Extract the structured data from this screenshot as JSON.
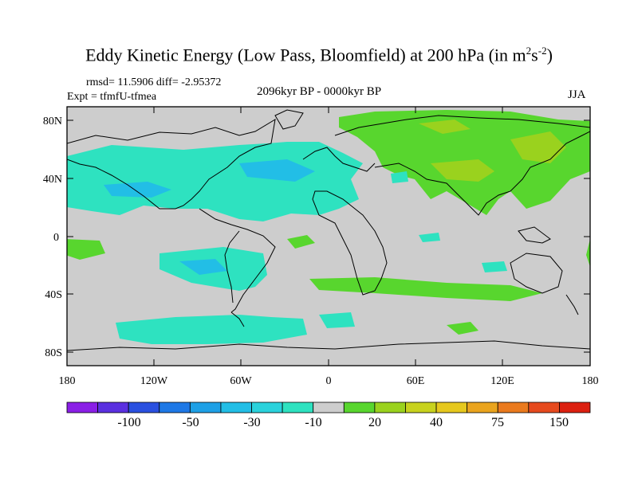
{
  "title": {
    "main": "Eddy Kinetic Energy (Low Pass, Bloomfield) at 200 hPa (in m",
    "sup1": "2",
    "mid": "s",
    "sup2": "-2",
    "end": ")"
  },
  "stats": {
    "rmsd_line": "rmsd= 11.5906 diff= -2.95372",
    "expt_line": "Expt = tfmfU-tfmea"
  },
  "period": "2096kyr BP - 0000kyr BP",
  "season": "JJA",
  "axes": {
    "y_ticks": [
      "80N",
      "40N",
      "0",
      "40S",
      "80S"
    ],
    "x_ticks": [
      "180",
      "120W",
      "60W",
      "0",
      "60E",
      "120E",
      "180"
    ]
  },
  "colorbar": {
    "colors": [
      "#8a1fe6",
      "#5a30e0",
      "#2a50e0",
      "#1e78e6",
      "#1ea0e6",
      "#22bee6",
      "#2ad2dc",
      "#2ee2c0",
      "#cdcdcd",
      "#58d62e",
      "#9ad21e",
      "#c8d21e",
      "#e6c81e",
      "#eaa41e",
      "#ea7a1e",
      "#e64a1e",
      "#dc2010"
    ],
    "labels": [
      "-100",
      "-50",
      "-30",
      "-10",
      "20",
      "40",
      "75",
      "150"
    ]
  },
  "colors": {
    "neutral": "#cdcdcd",
    "cyan": "#2ee2c0",
    "cyan_deep": "#22bee6",
    "green": "#58d62e",
    "yellow_green": "#9ad21e"
  }
}
